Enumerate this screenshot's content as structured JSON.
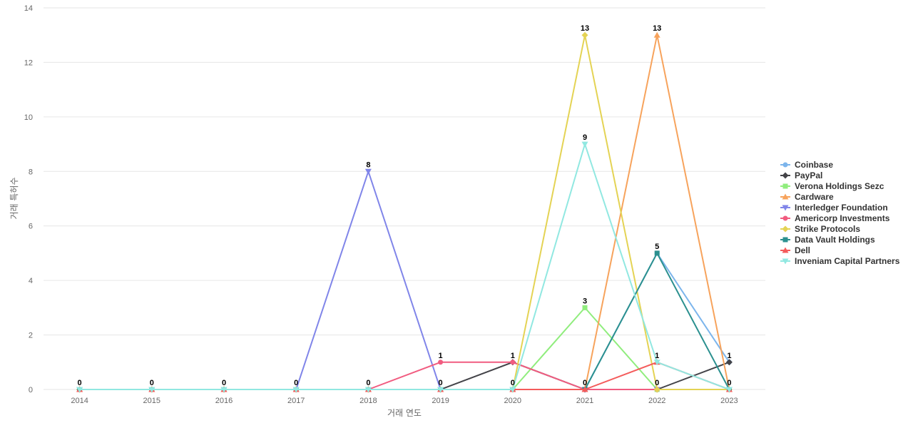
{
  "chart_data": {
    "type": "line",
    "title": "",
    "xlabel": "거래 연도",
    "ylabel": "거래 특허수",
    "ylim": [
      0,
      14
    ],
    "yticks": [
      0,
      2,
      4,
      6,
      8,
      10,
      12,
      14
    ],
    "grid": true,
    "legend_position": "right",
    "categories": [
      "2014",
      "2015",
      "2016",
      "2017",
      "2018",
      "2019",
      "2020",
      "2021",
      "2022",
      "2023"
    ],
    "series": [
      {
        "name": "Coinbase",
        "color": "#7cb5ec",
        "marker": "circle",
        "values": [
          0,
          0,
          0,
          0,
          0,
          0,
          0,
          0,
          5,
          1
        ]
      },
      {
        "name": "PayPal",
        "color": "#434348",
        "marker": "diamond",
        "values": [
          0,
          0,
          0,
          0,
          0,
          0,
          1,
          0,
          0,
          1
        ]
      },
      {
        "name": "Verona Holdings Sezc",
        "color": "#90ed7d",
        "marker": "square",
        "values": [
          0,
          0,
          0,
          0,
          0,
          0,
          0,
          3,
          0,
          0
        ]
      },
      {
        "name": "Cardware",
        "color": "#f7a35c",
        "marker": "triangle",
        "values": [
          0,
          0,
          0,
          0,
          0,
          0,
          0,
          0,
          13,
          0
        ]
      },
      {
        "name": "Interledger Foundation",
        "color": "#8085e9",
        "marker": "triangle-down",
        "values": [
          0,
          0,
          0,
          0,
          8,
          0,
          0,
          0,
          0,
          0
        ]
      },
      {
        "name": "Americorp Investments",
        "color": "#f15c80",
        "marker": "circle",
        "values": [
          0,
          0,
          0,
          0,
          0,
          1,
          1,
          0,
          0,
          0
        ]
      },
      {
        "name": "Strike Protocols",
        "color": "#e4d354",
        "marker": "diamond",
        "values": [
          0,
          0,
          0,
          0,
          0,
          0,
          0,
          13,
          0,
          0
        ]
      },
      {
        "name": "Data Vault Holdings",
        "color": "#2b908f",
        "marker": "square",
        "values": [
          0,
          0,
          0,
          0,
          0,
          0,
          0,
          0,
          5,
          0
        ]
      },
      {
        "name": "Dell",
        "color": "#f45b5b",
        "marker": "triangle",
        "values": [
          0,
          0,
          0,
          0,
          0,
          0,
          0,
          0,
          1,
          0
        ]
      },
      {
        "name": "Inveniam Capital Partners",
        "color": "#91e8e1",
        "marker": "triangle-down",
        "values": [
          0,
          0,
          0,
          0,
          0,
          0,
          0,
          9,
          1,
          0
        ]
      }
    ],
    "data_labels": [
      {
        "category": "2014",
        "value": 0,
        "text": "0"
      },
      {
        "category": "2015",
        "value": 0,
        "text": "0"
      },
      {
        "category": "2016",
        "value": 0,
        "text": "0"
      },
      {
        "category": "2017",
        "value": 0,
        "text": "0"
      },
      {
        "category": "2018",
        "value": 8,
        "text": "8"
      },
      {
        "category": "2018",
        "value": 0,
        "text": "0"
      },
      {
        "category": "2019",
        "value": 1,
        "text": "1"
      },
      {
        "category": "2019",
        "value": 0,
        "text": "0"
      },
      {
        "category": "2020",
        "value": 1,
        "text": "1"
      },
      {
        "category": "2020",
        "value": 0,
        "text": "0"
      },
      {
        "category": "2021",
        "value": 13,
        "text": "13"
      },
      {
        "category": "2021",
        "value": 9,
        "text": "9"
      },
      {
        "category": "2021",
        "value": 3,
        "text": "3"
      },
      {
        "category": "2021",
        "value": 0,
        "text": "0"
      },
      {
        "category": "2022",
        "value": 13,
        "text": "13"
      },
      {
        "category": "2022",
        "value": 5,
        "text": "5"
      },
      {
        "category": "2022",
        "value": 1,
        "text": "1"
      },
      {
        "category": "2022",
        "value": 0,
        "text": "0"
      },
      {
        "category": "2023",
        "value": 1,
        "text": "1"
      },
      {
        "category": "2023",
        "value": 0,
        "text": "0"
      }
    ]
  }
}
